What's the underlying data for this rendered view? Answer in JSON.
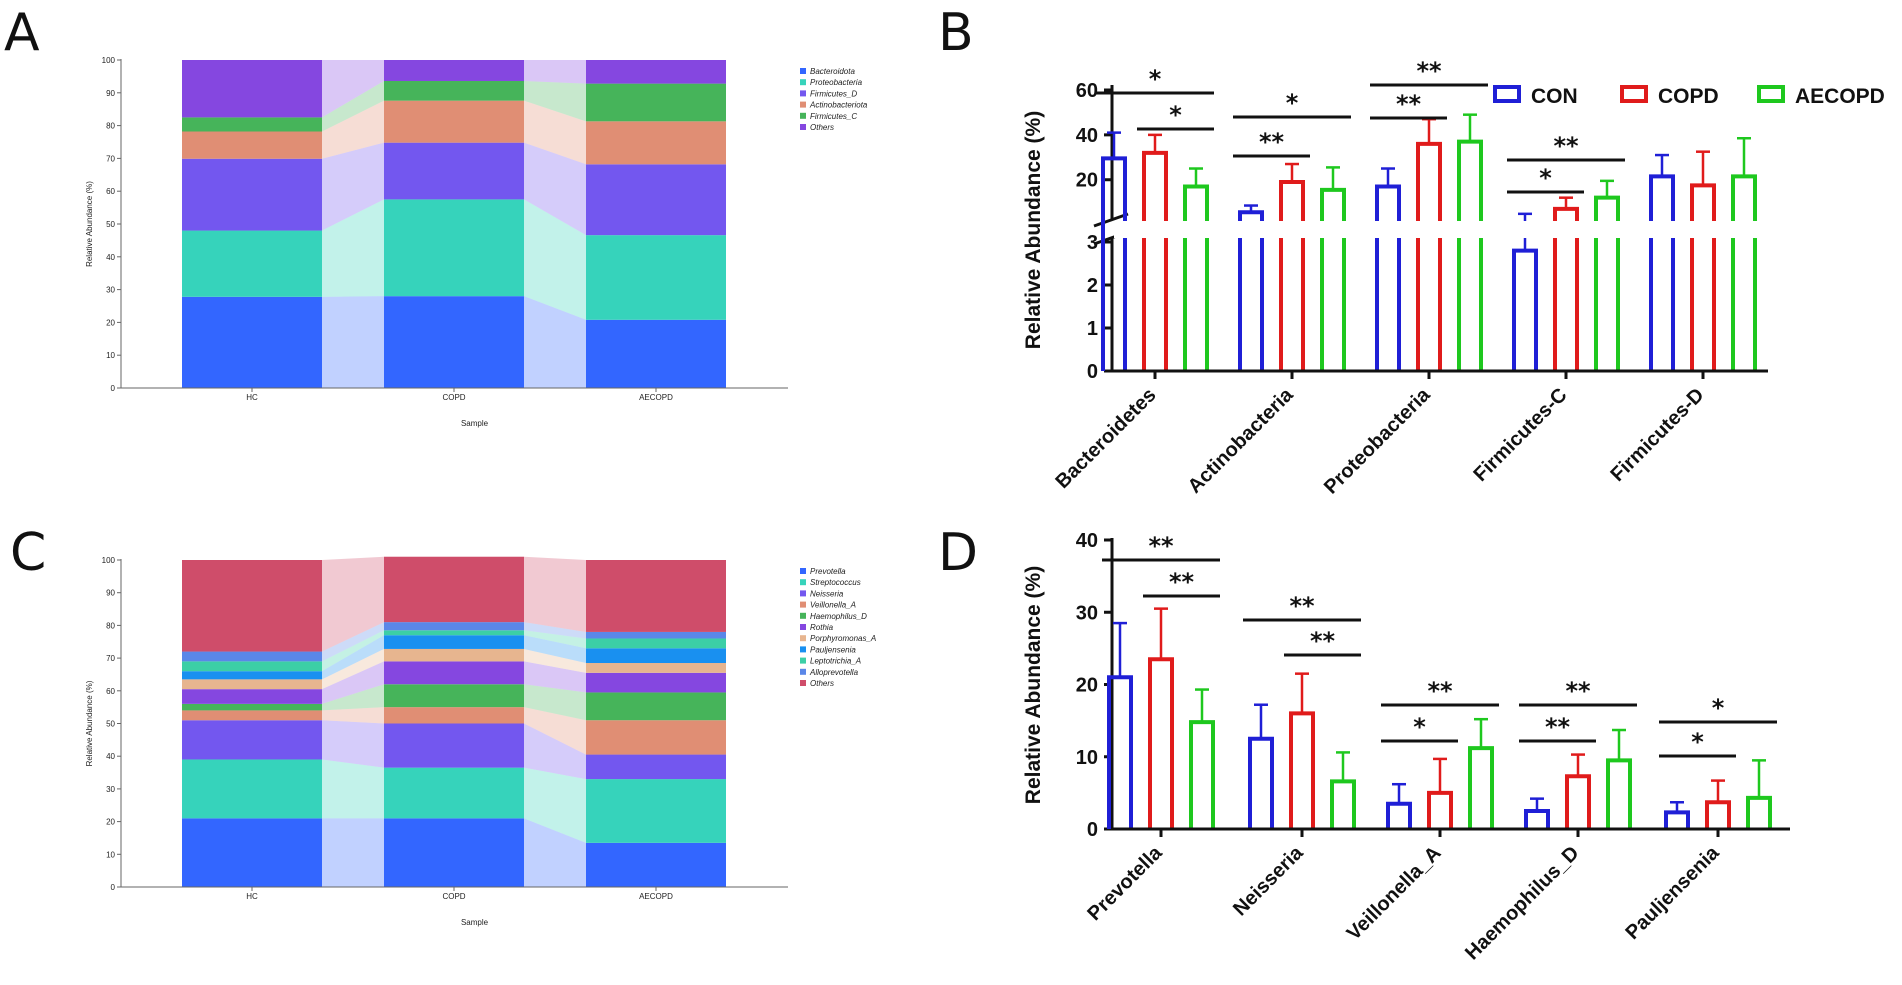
{
  "panel_labels": [
    "A",
    "B",
    "C",
    "D"
  ],
  "colors": {
    "CON": "#1f1fd6",
    "COPD": "#e01b1b",
    "AECOPD": "#1ec81e"
  },
  "chart_data": [
    {
      "panel": "A",
      "type": "area",
      "subtype": "stacked-bar-alluvial",
      "xlabel": "Sample",
      "ylabel": "Relative Abundance (%)",
      "ylim": [
        0,
        100
      ],
      "yticks": [
        "0",
        "10",
        "20",
        "30",
        "40",
        "50",
        "60",
        "70",
        "80",
        "90",
        "100"
      ],
      "categories": [
        "HC",
        "COPD",
        "AECOPD"
      ],
      "series": [
        {
          "name": "Bacteroidota",
          "color": "#3366ff",
          "values": [
            27.8,
            28.0,
            20.8
          ]
        },
        {
          "name": "Proteobacteria",
          "color": "#36d3bb",
          "values": [
            20.2,
            29.5,
            25.8
          ]
        },
        {
          "name": "Firmicutes_D",
          "color": "#7357ef",
          "values": [
            21.9,
            17.3,
            21.6
          ]
        },
        {
          "name": "Actinobacteriota",
          "color": "#e08e74",
          "values": [
            8.3,
            12.8,
            13.1
          ]
        },
        {
          "name": "Firmicutes_C",
          "color": "#46b45a",
          "values": [
            4.3,
            6.0,
            11.5
          ]
        },
        {
          "name": "Others",
          "color": "#8547e0",
          "values": [
            17.5,
            6.4,
            7.2
          ]
        }
      ]
    },
    {
      "panel": "B",
      "type": "bar",
      "ylabel": "Relative Abundance (%)",
      "yticks_lower": [
        "0",
        "1",
        "2",
        "3"
      ],
      "yticks_upper": [
        "20",
        "40",
        "60"
      ],
      "legend": [
        "CON",
        "COPD",
        "AECOPD"
      ],
      "categories": [
        "Bacteroidetes",
        "Actinobacteria",
        "Proteobacteria",
        "Firmicutes-C",
        "Firmicutes-D"
      ],
      "series": [
        {
          "name": "CON",
          "values": [
            29.5,
            5.5,
            17.0,
            2.8,
            21.5
          ],
          "errors": [
            11.5,
            3.0,
            8.0,
            2.0,
            9.5
          ]
        },
        {
          "name": "COPD",
          "values": [
            32.0,
            19.0,
            36.0,
            7.0,
            17.5
          ],
          "errors": [
            8.0,
            8.0,
            11.0,
            5.0,
            15.0
          ]
        },
        {
          "name": "AECOPD",
          "values": [
            17.0,
            15.5,
            37.0,
            12.0,
            21.5
          ],
          "errors": [
            8.0,
            10.0,
            12.0,
            7.5,
            17.0
          ]
        }
      ],
      "significance": [
        {
          "cat": 0,
          "from": 0,
          "to": 2,
          "label": "*"
        },
        {
          "cat": 0,
          "from": 1,
          "to": 2,
          "label": "*"
        },
        {
          "cat": 1,
          "from": 0,
          "to": 2,
          "label": "*"
        },
        {
          "cat": 1,
          "from": 0,
          "to": 1,
          "label": "**"
        },
        {
          "cat": 2,
          "from": 0,
          "to": 2,
          "label": "**"
        },
        {
          "cat": 2,
          "from": 0,
          "to": 1,
          "label": "**"
        },
        {
          "cat": 3,
          "from": 0,
          "to": 2,
          "label": "**"
        },
        {
          "cat": 3,
          "from": 0,
          "to": 1,
          "label": "*"
        }
      ]
    },
    {
      "panel": "C",
      "type": "area",
      "subtype": "stacked-bar-alluvial",
      "xlabel": "Sample",
      "ylabel": "Relative Abundance (%)",
      "ylim": [
        0,
        100
      ],
      "yticks": [
        "0",
        "10",
        "20",
        "30",
        "40",
        "50",
        "60",
        "70",
        "80",
        "90",
        "100"
      ],
      "categories": [
        "HC",
        "COPD",
        "AECOPD"
      ],
      "series": [
        {
          "name": "Prevotella",
          "color": "#3366ff",
          "values": [
            21.0,
            21.0,
            13.5
          ]
        },
        {
          "name": "Streptococcus",
          "color": "#36d3bb",
          "values": [
            18.0,
            15.5,
            19.5
          ]
        },
        {
          "name": "Neisseria",
          "color": "#7357ef",
          "values": [
            12.0,
            13.5,
            7.5
          ]
        },
        {
          "name": "Veillonella_A",
          "color": "#e08e74",
          "values": [
            3.0,
            5.0,
            10.5
          ]
        },
        {
          "name": "Haemophilus_D",
          "color": "#46b45a",
          "values": [
            2.0,
            7.0,
            8.5
          ]
        },
        {
          "name": "Rothia",
          "color": "#8547e0",
          "values": [
            4.5,
            7.0,
            6.0
          ]
        },
        {
          "name": "Porphyromonas_A",
          "color": "#e7b58f",
          "values": [
            3.0,
            3.8,
            3.0
          ]
        },
        {
          "name": "Pauljensenia",
          "color": "#1990f0",
          "values": [
            2.5,
            4.2,
            4.5
          ]
        },
        {
          "name": "Leptotrichia_A",
          "color": "#3ccfa6",
          "values": [
            3.0,
            1.5,
            3.0
          ]
        },
        {
          "name": "Alloprevotella",
          "color": "#5a87e8",
          "values": [
            3.0,
            2.5,
            2.0
          ]
        },
        {
          "name": "Others",
          "color": "#cf4d6a",
          "values": [
            28.0,
            20.0,
            22.0
          ]
        }
      ]
    },
    {
      "panel": "D",
      "type": "bar",
      "ylabel": "Relative Abundance (%)",
      "ylim": [
        0,
        40
      ],
      "yticks": [
        "0",
        "10",
        "20",
        "30",
        "40"
      ],
      "categories": [
        "Prevotella",
        "Neisseria",
        "Veillonella_A",
        "Haemophilus_D",
        "Pauljensenia"
      ],
      "series": [
        {
          "name": "CON",
          "values": [
            21.0,
            12.5,
            3.5,
            2.5,
            2.3
          ],
          "errors": [
            7.5,
            4.7,
            2.7,
            1.7,
            1.4
          ]
        },
        {
          "name": "COPD",
          "values": [
            23.5,
            16.0,
            5.0,
            7.3,
            3.7
          ],
          "errors": [
            7.0,
            5.5,
            4.7,
            3.0,
            3.0
          ]
        },
        {
          "name": "AECOPD",
          "values": [
            14.8,
            6.6,
            11.2,
            9.5,
            4.3
          ],
          "errors": [
            4.5,
            4.0,
            4.0,
            4.2,
            5.2
          ]
        }
      ],
      "significance": [
        {
          "cat": 0,
          "from": 0,
          "to": 2,
          "label": "**"
        },
        {
          "cat": 0,
          "from": 1,
          "to": 2,
          "label": "**"
        },
        {
          "cat": 1,
          "from": 0,
          "to": 2,
          "label": "**"
        },
        {
          "cat": 1,
          "from": 1,
          "to": 2,
          "label": "**"
        },
        {
          "cat": 2,
          "from": 0,
          "to": 2,
          "label": "**"
        },
        {
          "cat": 2,
          "from": 0,
          "to": 1,
          "label": "*"
        },
        {
          "cat": 3,
          "from": 0,
          "to": 2,
          "label": "**"
        },
        {
          "cat": 3,
          "from": 0,
          "to": 1,
          "label": "**"
        },
        {
          "cat": 4,
          "from": 0,
          "to": 2,
          "label": "*"
        },
        {
          "cat": 4,
          "from": 0,
          "to": 1,
          "label": "*"
        }
      ]
    }
  ]
}
